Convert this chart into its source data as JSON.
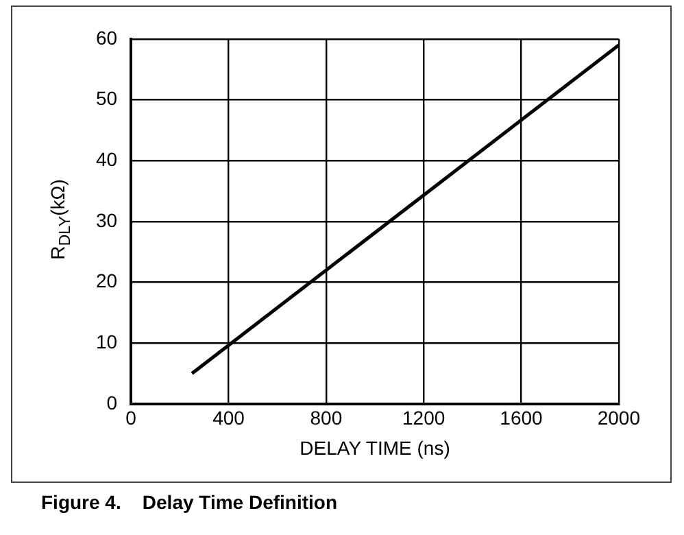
{
  "chart_data": {
    "type": "line",
    "title": "Figure 4.    Delay Time Definition",
    "xlabel": "DELAY TIME (ns)",
    "ylabel": "R$_{DLY}$(kΩ)",
    "series": [
      {
        "color": "#000000",
        "x": [
          250,
          2000
        ],
        "values": [
          5,
          59
        ]
      }
    ],
    "xlim": [
      0,
      2000
    ],
    "xticks": [
      0,
      400,
      800,
      1200,
      1600,
      2000
    ],
    "ylim": [
      0,
      60
    ],
    "yticks": [
      0,
      10,
      20,
      30,
      40,
      50,
      60
    ],
    "grid": true,
    "legend": false,
    "marker": "none",
    "line_style": "solid"
  }
}
